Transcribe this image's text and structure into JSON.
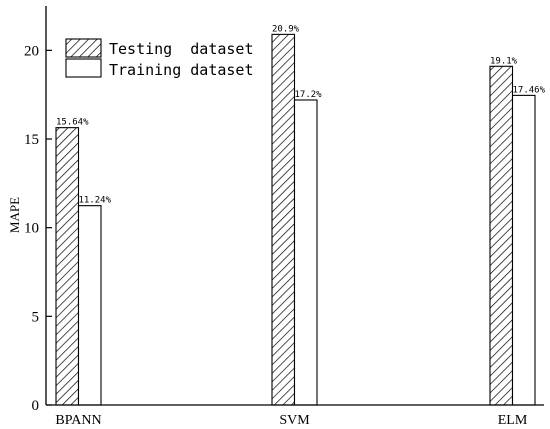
{
  "chart_data": {
    "type": "bar",
    "categories": [
      "BPANN",
      "SVM",
      "ELM"
    ],
    "series": [
      {
        "name": "Testing  dataset",
        "pattern": "hatched",
        "values": [
          15.64,
          20.9,
          19.1
        ],
        "labels": [
          "15.64%",
          "20.9%",
          "19.1%"
        ]
      },
      {
        "name": "Training dataset",
        "pattern": "plain",
        "values": [
          11.24,
          17.2,
          17.46
        ],
        "labels": [
          "11.24%",
          "17.2%",
          "17.46%"
        ]
      }
    ],
    "ylabel": "MAPE",
    "xlabel": "",
    "ylim": [
      0,
      22.5
    ],
    "yticks": [
      0,
      5,
      10,
      15,
      20
    ],
    "grid": false,
    "legend_position": "top-left",
    "colors": {
      "bar_fill": "#ffffff",
      "hatch": "#000000",
      "axis": "#000000"
    }
  }
}
